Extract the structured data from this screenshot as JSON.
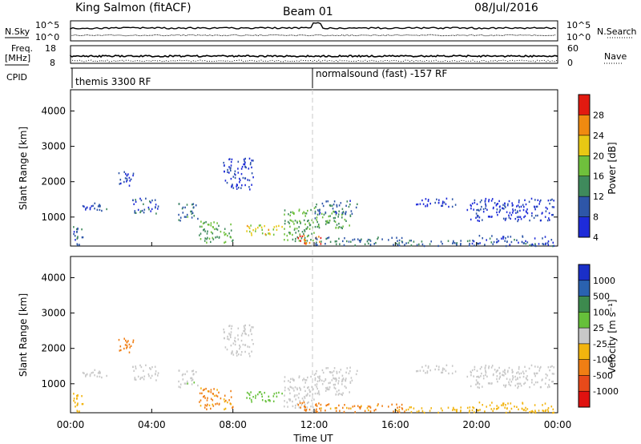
{
  "header": {
    "station": "King Salmon (fitACF)",
    "beam": "Beam 01",
    "date": "08/Jul/2016"
  },
  "top_panels": {
    "nsky_label": "N.Sky",
    "nsky_ticks": [
      "10^5",
      "10^0"
    ],
    "nsearch_label": "N.Search",
    "nsearch_ticks": [
      "10^5",
      "10^0"
    ],
    "freq_label": "Freq.",
    "freq_unit": "[MHz]",
    "freq_ticks": [
      "18",
      "8"
    ],
    "nave_label": "Nave",
    "nave_ticks": [
      "60",
      "0"
    ],
    "cpid_label": "CPID",
    "cpid_segments": [
      "themis 3300 RF",
      "normalsound (fast) -157 RF"
    ]
  },
  "x_axis": {
    "label": "Time UT",
    "ticks": [
      "00:00",
      "04:00",
      "08:00",
      "12:00",
      "16:00",
      "20:00",
      "00:00"
    ]
  },
  "y_axis": {
    "label": "Slant Range [km]",
    "ticks": [
      "1000",
      "2000",
      "3000",
      "4000"
    ]
  },
  "power_colorbar": {
    "label": "Power [dB]",
    "ticks": [
      "4",
      "8",
      "12",
      "16",
      "20",
      "24",
      "28"
    ],
    "colors": [
      "#1e2bd9",
      "#2e56a8",
      "#3f8a5c",
      "#6fc03c",
      "#e8c814",
      "#f08a10",
      "#e21a10"
    ]
  },
  "velocity_colorbar": {
    "label": "Velocity [m s⁻¹]",
    "ticks": [
      "1000",
      "500",
      "100",
      "25",
      "-25",
      "-100",
      "-500",
      "-1000"
    ],
    "colors": [
      "#1a2fc8",
      "#2a62b0",
      "#3d8a4e",
      "#66c03a",
      "#c8c8c8",
      "#f2b40e",
      "#f07e14",
      "#e84a1a",
      "#e01210"
    ]
  },
  "chart_data": [
    {
      "type": "heatmap",
      "title": "Power",
      "xlabel": "Time UT",
      "ylabel": "Slant Range [km]",
      "xlim": [
        0,
        24
      ],
      "ylim": [
        180,
        4600
      ],
      "clabel": "Power [dB]",
      "clim": [
        0,
        32
      ],
      "cpid_change_hour": 12,
      "regions": [
        {
          "t": [
            0.3,
            1.8
          ],
          "r": [
            1200,
            1450
          ],
          "v": 6
        },
        {
          "t": [
            0.1,
            0.6
          ],
          "r": [
            200,
            800
          ],
          "v": 7
        },
        {
          "t": [
            2.3,
            3.1
          ],
          "r": [
            1900,
            2300
          ],
          "v": 5
        },
        {
          "t": [
            3.0,
            4.3
          ],
          "r": [
            1100,
            1550
          ],
          "v": 6
        },
        {
          "t": [
            5.3,
            6.3
          ],
          "r": [
            900,
            1400
          ],
          "v": 10
        },
        {
          "t": [
            6.3,
            8.0
          ],
          "r": [
            300,
            900
          ],
          "v": 14
        },
        {
          "t": [
            7.5,
            9.0
          ],
          "r": [
            1800,
            2700
          ],
          "v": 4
        },
        {
          "t": [
            8.6,
            10.5
          ],
          "r": [
            500,
            800
          ],
          "v": 20
        },
        {
          "t": [
            10.5,
            12.0
          ],
          "r": [
            300,
            1300
          ],
          "v": 14
        },
        {
          "t": [
            11.0,
            12.3
          ],
          "r": [
            250,
            500
          ],
          "v": 26
        },
        {
          "t": [
            12.0,
            13.8
          ],
          "r": [
            700,
            1200
          ],
          "v": 13
        },
        {
          "t": [
            12.0,
            14.2
          ],
          "r": [
            1100,
            1500
          ],
          "v": 8
        },
        {
          "t": [
            12.0,
            16.5
          ],
          "r": [
            220,
            450
          ],
          "v": 9
        },
        {
          "t": [
            16.5,
            20.0
          ],
          "r": [
            200,
            380
          ],
          "v": 8
        },
        {
          "t": [
            20.0,
            23.9
          ],
          "r": [
            200,
            500
          ],
          "v": 6
        },
        {
          "t": [
            19.5,
            23.8
          ],
          "r": [
            900,
            1550
          ],
          "v": 3
        },
        {
          "t": [
            17.0,
            19.0
          ],
          "r": [
            1300,
            1550
          ],
          "v": 3
        }
      ]
    },
    {
      "type": "heatmap",
      "title": "Velocity",
      "xlabel": "Time UT",
      "ylabel": "Slant Range [km]",
      "xlim": [
        0,
        24
      ],
      "ylim": [
        180,
        4600
      ],
      "clabel": "Velocity [m s⁻¹]",
      "clim": [
        -1000,
        1000
      ],
      "cpid_change_hour": 12,
      "regions": [
        {
          "t": [
            0.3,
            1.8
          ],
          "r": [
            1200,
            1450
          ],
          "v": 0
        },
        {
          "t": [
            0.1,
            0.6
          ],
          "r": [
            200,
            800
          ],
          "v": -50
        },
        {
          "t": [
            2.3,
            3.1
          ],
          "r": [
            1900,
            2300
          ],
          "v": -200
        },
        {
          "t": [
            3.0,
            4.3
          ],
          "r": [
            1100,
            1550
          ],
          "v": 0
        },
        {
          "t": [
            5.3,
            6.3
          ],
          "r": [
            900,
            1400
          ],
          "v": 10
        },
        {
          "t": [
            6.3,
            8.0
          ],
          "r": [
            300,
            900
          ],
          "v": -150
        },
        {
          "t": [
            7.5,
            9.0
          ],
          "r": [
            1800,
            2700
          ],
          "v": 0
        },
        {
          "t": [
            8.6,
            10.5
          ],
          "r": [
            500,
            800
          ],
          "v": 60
        },
        {
          "t": [
            10.5,
            12.0
          ],
          "r": [
            300,
            1300
          ],
          "v": 0
        },
        {
          "t": [
            11.0,
            12.3
          ],
          "r": [
            250,
            500
          ],
          "v": -300
        },
        {
          "t": [
            12.0,
            13.8
          ],
          "r": [
            700,
            1200
          ],
          "v": 0
        },
        {
          "t": [
            12.0,
            14.2
          ],
          "r": [
            1100,
            1500
          ],
          "v": 0
        },
        {
          "t": [
            12.0,
            16.5
          ],
          "r": [
            220,
            450
          ],
          "v": -150
        },
        {
          "t": [
            16.5,
            20.0
          ],
          "r": [
            200,
            380
          ],
          "v": -80
        },
        {
          "t": [
            20.0,
            23.9
          ],
          "r": [
            200,
            500
          ],
          "v": -60
        },
        {
          "t": [
            19.5,
            23.8
          ],
          "r": [
            900,
            1550
          ],
          "v": 0
        },
        {
          "t": [
            17.0,
            19.0
          ],
          "r": [
            1300,
            1550
          ],
          "v": 0
        }
      ]
    }
  ]
}
